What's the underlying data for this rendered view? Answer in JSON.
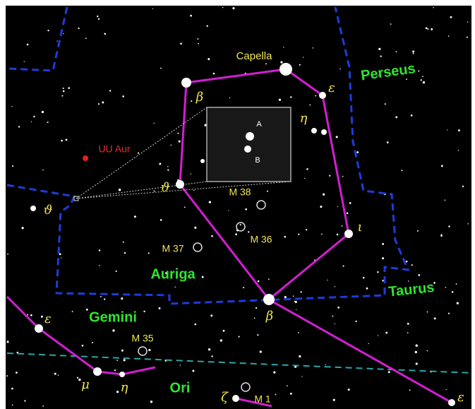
{
  "labels": [
    "Capella",
    "Perseus",
    "ε",
    "β",
    "η",
    "ϑ",
    "ι",
    "UU Aur",
    "A",
    "B",
    "M 38",
    "M 36",
    "M 37",
    "Auriga",
    "Taurus",
    "Gemini",
    "β",
    "ε",
    "M 35",
    "ϑ",
    "μ",
    "η",
    "Ori",
    "ζ",
    "M 1",
    "ε"
  ]
}
